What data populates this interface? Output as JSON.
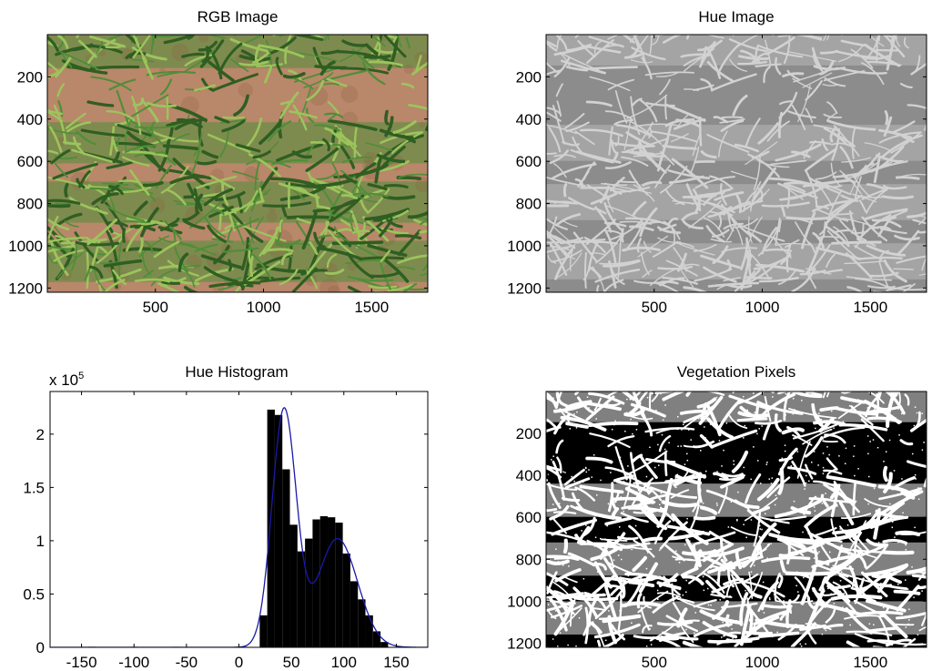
{
  "chart_data": [
    {
      "type": "image",
      "title": "RGB Image",
      "xticks": [
        500,
        1000,
        1500
      ],
      "yticks": [
        200,
        400,
        600,
        800,
        1000,
        1200
      ],
      "xlim": [
        0,
        1760
      ],
      "ylim": [
        0,
        1220
      ],
      "image_content": "photo of wheat seedlings in rows on reddish-brown soil",
      "colors": {
        "soil": "#b9876a",
        "soil_dark": "#8a6040",
        "leaf": "#4f8e38",
        "leaf_light": "#9cc45c",
        "leaf_dark": "#2f5e22"
      }
    },
    {
      "type": "image",
      "title": "Hue Image",
      "xticks": [
        500,
        1000,
        1500
      ],
      "yticks": [
        200,
        400,
        600,
        800,
        1000,
        1200
      ],
      "xlim": [
        0,
        1760
      ],
      "ylim": [
        0,
        1220
      ],
      "image_content": "grayscale hue map, light vegetation on mid-gray background",
      "colors": {
        "background": "#8c8c8c",
        "vegetation": "#d2d2d2"
      }
    },
    {
      "type": "bar",
      "title": "Hue Histogram",
      "scale_label": "x 10",
      "scale_exponent": "5",
      "xticks": [
        -150,
        -100,
        -50,
        0,
        50,
        100,
        150
      ],
      "yticks": [
        0,
        0.5,
        1,
        1.5,
        2
      ],
      "xlim": [
        -180,
        180
      ],
      "ylim": [
        0,
        2.4
      ],
      "bin_width": 7.2,
      "x": [
        30.6,
        37.8,
        45.0,
        52.2,
        59.4,
        66.6,
        73.8,
        81.0,
        88.2,
        95.4,
        102.6,
        109.8,
        117.0,
        124.2,
        131.4,
        138.6
      ],
      "values": [
        2.23,
        2.18,
        1.67,
        1.15,
        0.9,
        1.02,
        1.2,
        1.23,
        1.22,
        1.17,
        0.88,
        0.62,
        0.45,
        0.3,
        0.15,
        0.05
      ],
      "outlier_values": [
        {
          "x": 23.4,
          "value": 0.3
        },
        {
          "x": -140,
          "value": 0.005
        },
        {
          "x": -100,
          "value": 0.005
        },
        {
          "x": -60,
          "value": 0.005
        },
        {
          "x": 5,
          "value": 0.005
        }
      ],
      "fit_curve": {
        "color": "#1a1aaa",
        "components": [
          {
            "mean": 43,
            "sd": 11.5,
            "peak": 2.22
          },
          {
            "mean": 94,
            "sd": 19,
            "peak": 1.02
          }
        ]
      },
      "colors": {
        "bars": "#000000"
      }
    },
    {
      "type": "image",
      "title": "Vegetation Pixels",
      "xticks": [
        500,
        1000,
        1500
      ],
      "yticks": [
        200,
        400,
        600,
        800,
        1000,
        1200
      ],
      "xlim": [
        0,
        1760
      ],
      "ylim": [
        0,
        1220
      ],
      "image_content": "binary mask, white vegetation on black soil",
      "colors": {
        "background": "#000000",
        "vegetation": "#ffffff"
      }
    }
  ]
}
